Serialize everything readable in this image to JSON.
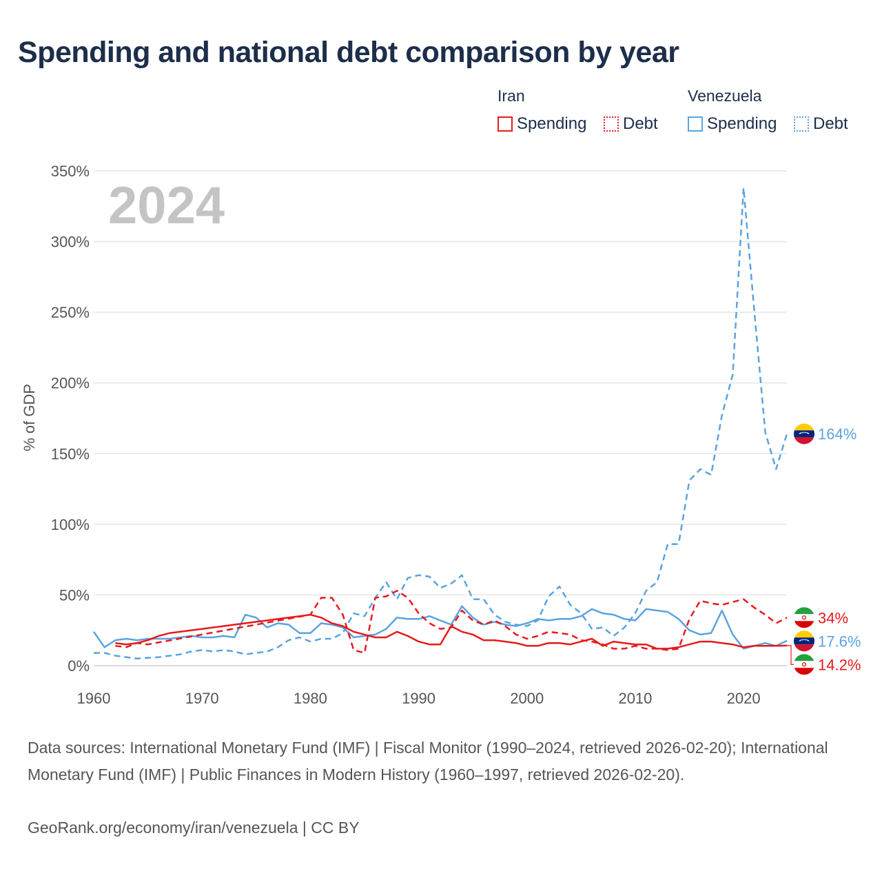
{
  "title": "Spending and national debt comparison by year",
  "legend": {
    "iran_label": "Iran",
    "venezuela_label": "Venezuela",
    "spending_label": "Spending",
    "debt_label": "Debt"
  },
  "colors": {
    "iran": "#e8191c",
    "venezuela": "#5aa3e0"
  },
  "year_watermark": "2024",
  "footer": {
    "sources": "Data sources: International Monetary Fund (IMF) | Fiscal Monitor (1990–2024, retrieved 2026-02-20); International Monetary Fund (IMF) | Public Finances in Modern History (1960–1997, retrieved 2026-02-20).",
    "credit": "GeoRank.org/economy/iran/venezuela | CC BY"
  },
  "chart_data": {
    "type": "line",
    "ylabel": "% of GDP",
    "xlabel": "",
    "xlim": [
      1960,
      2024
    ],
    "ylim": [
      0,
      350
    ],
    "x_ticks": [
      1960,
      1970,
      1980,
      1990,
      2000,
      2010,
      2020
    ],
    "x_tick_labels": [
      "1960",
      "1970",
      "1980",
      "1990",
      "2000",
      "2010",
      "2020"
    ],
    "y_ticks": [
      0,
      50,
      100,
      150,
      200,
      250,
      300,
      350
    ],
    "y_tick_labels": [
      "0%",
      "50%",
      "100%",
      "150%",
      "200%",
      "250%",
      "300%",
      "350%"
    ],
    "end_labels": [
      {
        "series": "venezuela_debt",
        "text": "164%"
      },
      {
        "series": "iran_debt",
        "text": "34%"
      },
      {
        "series": "venezuela_spending",
        "text": "17.6%"
      },
      {
        "series": "iran_spending",
        "text": "14.2%"
      }
    ],
    "series": [
      {
        "name": "venezuela_debt",
        "country": "Venezuela",
        "kind": "Debt",
        "style": "dashed",
        "x": [
          1960,
          1961,
          1962,
          1963,
          1964,
          1965,
          1966,
          1967,
          1968,
          1969,
          1970,
          1971,
          1972,
          1973,
          1974,
          1975,
          1976,
          1977,
          1978,
          1979,
          1980,
          1981,
          1982,
          1983,
          1984,
          1985,
          1986,
          1987,
          1988,
          1989,
          1990,
          1991,
          1992,
          1993,
          1994,
          1995,
          1996,
          1997,
          1998,
          1999,
          2000,
          2001,
          2002,
          2003,
          2004,
          2005,
          2006,
          2007,
          2008,
          2009,
          2010,
          2011,
          2012,
          2013,
          2014,
          2015,
          2016,
          2017,
          2018,
          2019,
          2020,
          2021,
          2022,
          2023,
          2024
        ],
        "values": [
          9,
          9,
          7,
          6,
          5,
          5.5,
          6,
          7,
          8,
          10,
          11,
          10,
          11,
          10,
          8,
          9,
          10,
          13,
          18,
          20,
          17,
          19,
          19,
          23,
          37,
          35,
          48,
          59,
          47,
          62,
          64,
          63,
          55,
          58,
          64,
          47,
          47,
          36,
          31,
          29,
          28,
          32,
          49,
          56,
          43,
          37,
          26,
          27,
          21,
          27,
          37,
          53,
          59,
          86,
          86,
          131,
          139,
          135,
          177,
          206,
          338,
          250,
          165,
          139,
          164
        ]
      },
      {
        "name": "venezuela_spending",
        "country": "Venezuela",
        "kind": "Spending",
        "style": "solid",
        "x": [
          1960,
          1961,
          1962,
          1963,
          1964,
          1965,
          1966,
          1967,
          1968,
          1969,
          1970,
          1971,
          1972,
          1973,
          1974,
          1975,
          1976,
          1977,
          1978,
          1979,
          1980,
          1981,
          1982,
          1983,
          1984,
          1985,
          1986,
          1987,
          1988,
          1989,
          1990,
          1991,
          1992,
          1993,
          1994,
          1995,
          1996,
          1997,
          1998,
          1999,
          2000,
          2001,
          2002,
          2003,
          2004,
          2005,
          2006,
          2007,
          2008,
          2009,
          2010,
          2011,
          2012,
          2013,
          2014,
          2015,
          2016,
          2017,
          2018,
          2019,
          2020,
          2021,
          2022,
          2023,
          2024
        ],
        "values": [
          24,
          13,
          18,
          19,
          18,
          19,
          19,
          19,
          20,
          21,
          20,
          20,
          21,
          20,
          36,
          34,
          27,
          30,
          29,
          23,
          23,
          30,
          29,
          27,
          20,
          21,
          22,
          26,
          34,
          33,
          33,
          35,
          32,
          29,
          42,
          34,
          29,
          31,
          29,
          28,
          30,
          33,
          32,
          33,
          33,
          35,
          40,
          37,
          36,
          33,
          32,
          40,
          39,
          38,
          33,
          25,
          22,
          23,
          39,
          22,
          12,
          14,
          16,
          14,
          17.6
        ]
      },
      {
        "name": "iran_debt",
        "country": "Iran",
        "kind": "Debt",
        "style": "dashed",
        "x": [
          1962,
          1963,
          1964,
          1965,
          1980,
          1981,
          1982,
          1983,
          1984,
          1985,
          1986,
          1987,
          1988,
          1989,
          1990,
          1991,
          1992,
          1993,
          1994,
          1995,
          1996,
          1997,
          1998,
          1999,
          2000,
          2001,
          2002,
          2003,
          2004,
          2005,
          2006,
          2007,
          2008,
          2009,
          2010,
          2011,
          2012,
          2013,
          2014,
          2015,
          2016,
          2017,
          2018,
          2019,
          2020,
          2021,
          2022,
          2023,
          2024
        ],
        "values": [
          14,
          13,
          16,
          15,
          36,
          48,
          48,
          36,
          11,
          9,
          48,
          49,
          53,
          48,
          37,
          30,
          26,
          27,
          39,
          32,
          29,
          32,
          28,
          22,
          19,
          21,
          24,
          23,
          22,
          18,
          17,
          15,
          12,
          12,
          14,
          12,
          12,
          11,
          12,
          33,
          46,
          44,
          43,
          45,
          47,
          41,
          36,
          30,
          34
        ]
      },
      {
        "name": "iran_spending",
        "country": "Iran",
        "kind": "Spending",
        "style": "solid",
        "x": [
          1962,
          1963,
          1964,
          1965,
          1966,
          1967,
          1968,
          1969,
          1970,
          1971,
          1972,
          1973,
          1974,
          1975,
          1976,
          1977,
          1978,
          1979,
          1980,
          1981,
          1982,
          1983,
          1984,
          1985,
          1986,
          1987,
          1988,
          1989,
          1990,
          1991,
          1992,
          1993,
          1994,
          1995,
          1996,
          1997,
          1998,
          1999,
          2000,
          2001,
          2002,
          2003,
          2004,
          2005,
          2006,
          2007,
          2008,
          2009,
          2010,
          2011,
          2012,
          2013,
          2014,
          2015,
          2016,
          2017,
          2018,
          2019,
          2020,
          2021,
          2022,
          2023,
          2024
        ],
        "values": [
          16,
          15,
          16,
          18,
          21,
          23,
          24,
          25,
          26,
          27,
          28,
          29,
          30,
          31,
          32,
          33,
          34,
          35,
          36,
          34,
          30,
          28,
          24,
          22,
          20,
          20,
          24,
          21,
          17,
          15,
          15,
          28,
          24,
          22,
          18,
          18,
          17,
          16,
          14,
          14,
          16,
          16,
          15,
          17,
          19,
          14,
          17,
          16,
          15,
          15,
          12,
          12,
          13,
          15,
          17,
          17,
          16,
          15,
          13,
          14,
          14,
          14,
          14.2
        ]
      }
    ]
  }
}
